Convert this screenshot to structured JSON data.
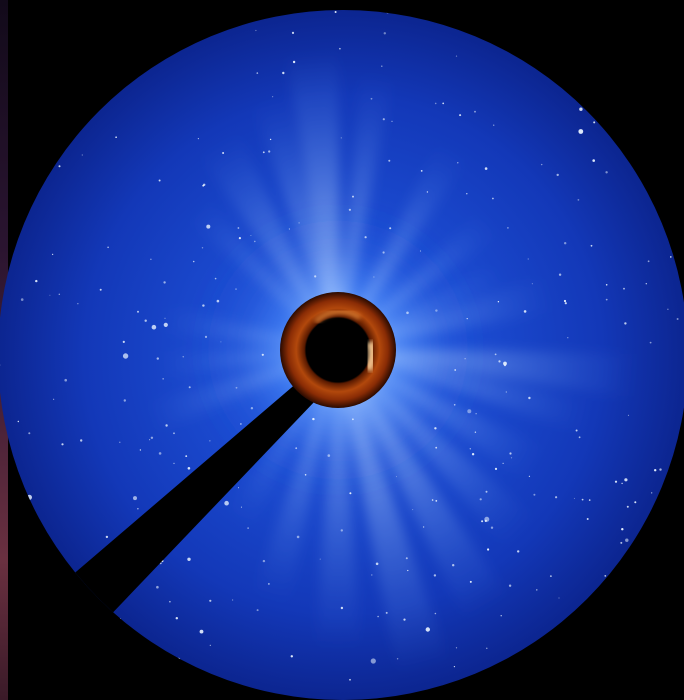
{
  "image": {
    "subject": "coronagraph-view",
    "colors": {
      "background": "#000000",
      "field_deep": "#0a1f8f",
      "field_mid": "#1c46cf",
      "field_light": "#3b7bff",
      "streamer": "#cfe6ff",
      "inner_occulter_ring": "#a33a08",
      "inner_occulter_glow": "#ffb060",
      "occulter_disk": "#000000",
      "pylon": "#000000",
      "stars": "#e8f2ff"
    }
  }
}
